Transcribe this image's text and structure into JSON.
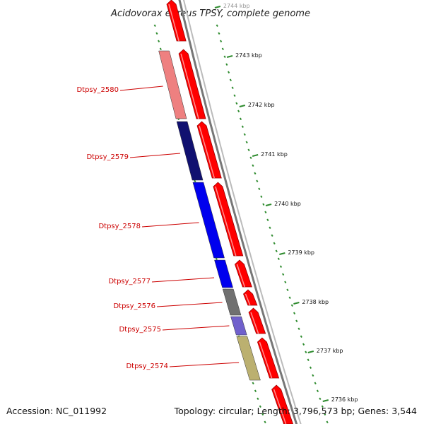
{
  "title": "Acidovorax ebreus TPSY, complete genome",
  "accession": "Accession: NC_011992",
  "topology": "Topology: circular; Length: 3,796,573 bp; Genes: 3,544",
  "colors": {
    "forward_cds": "#ff0000",
    "backbone": "#888888",
    "ticks": "#2e8b2e",
    "label": "#cc0000"
  },
  "kbp_ticks": [
    "2744 kbp",
    "2743 kbp",
    "2742 kbp",
    "2741 kbp",
    "2740 kbp",
    "2739 kbp",
    "2738 kbp",
    "2737 kbp",
    "2736 kbp"
  ],
  "genes": [
    {
      "name": "Dtpsy_2580",
      "color": "#ee8080"
    },
    {
      "name": "Dtpsy_2579",
      "color": "#101070"
    },
    {
      "name": "Dtpsy_2578",
      "color": "#0000ee"
    },
    {
      "name": "Dtpsy_2577",
      "color": "#0000ee"
    },
    {
      "name": "Dtpsy_2576",
      "color": "#707070"
    },
    {
      "name": "Dtpsy_2575",
      "color": "#7060cc"
    },
    {
      "name": "Dtpsy_2574",
      "color": "#bbb070"
    }
  ]
}
